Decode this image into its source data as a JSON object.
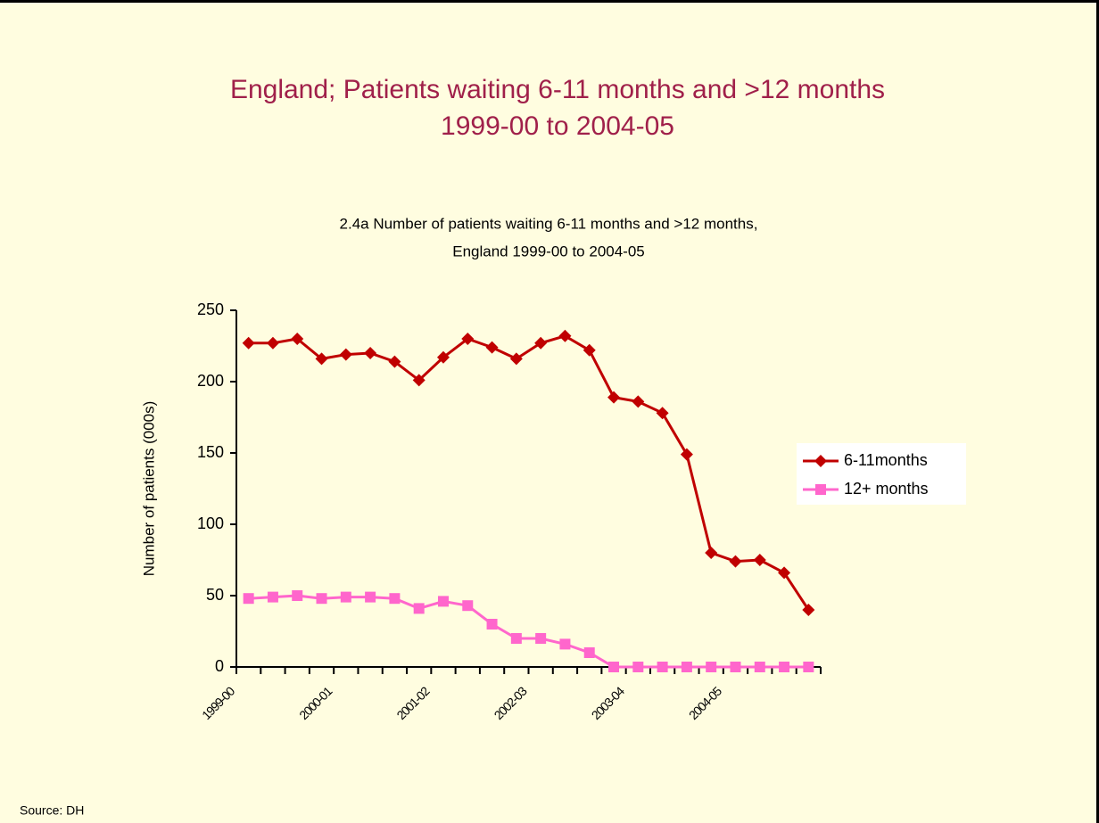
{
  "chart_data": {
    "type": "line",
    "title": [
      "England; Patients waiting 6-11 months and >12 months",
      "1999-00 to 2004-05"
    ],
    "subtitle": [
      "2.4a Number of patients waiting 6-11 months and >12 months,",
      "England 1999-00 to 2004-05"
    ],
    "y_label": "Number of patients (000s)",
    "source": "Source: DH",
    "categories": [
      "1999-00",
      null,
      null,
      null,
      "2000-01",
      null,
      null,
      null,
      "2001-02",
      null,
      null,
      null,
      "2002-03",
      null,
      null,
      null,
      "2003-04",
      null,
      null,
      null,
      "2004-05",
      null,
      null,
      null
    ],
    "series": [
      {
        "name": "6-11months",
        "color": "#c00000",
        "marker": "diamond",
        "values": [
          227,
          227,
          230,
          216,
          219,
          220,
          214,
          201,
          217,
          230,
          224,
          216,
          227,
          232,
          222,
          189,
          186,
          178,
          149,
          80,
          74,
          75,
          66,
          40
        ]
      },
      {
        "name": "12+ months",
        "color": "#ff66cc",
        "marker": "square",
        "values": [
          48,
          49,
          50,
          48,
          49,
          49,
          48,
          41,
          46,
          43,
          30,
          20,
          20,
          16,
          10,
          0,
          0,
          0,
          0,
          0,
          0,
          0,
          0,
          0
        ]
      }
    ],
    "ylim": [
      0,
      250
    ],
    "yticks": [
      0,
      50,
      100,
      150,
      200,
      250
    ],
    "legend": "right"
  }
}
